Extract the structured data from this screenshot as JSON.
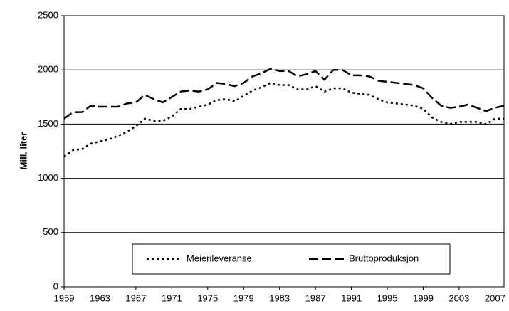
{
  "chart_data": {
    "type": "line",
    "y_label": "Mill. liter",
    "x": [
      1959,
      1960,
      1961,
      1962,
      1963,
      1964,
      1965,
      1966,
      1967,
      1968,
      1969,
      1970,
      1971,
      1972,
      1973,
      1974,
      1975,
      1976,
      1977,
      1978,
      1979,
      1980,
      1981,
      1982,
      1983,
      1984,
      1985,
      1986,
      1987,
      1988,
      1989,
      1990,
      1991,
      1992,
      1993,
      1994,
      1995,
      1996,
      1997,
      1998,
      1999,
      2000,
      2001,
      2002,
      2003,
      2004,
      2005,
      2006,
      2007,
      2008
    ],
    "series": [
      {
        "name": "Meierileveranse",
        "color": "#000000",
        "dash": "dotted",
        "values": [
          1200,
          1260,
          1270,
          1320,
          1340,
          1360,
          1390,
          1430,
          1480,
          1550,
          1530,
          1530,
          1570,
          1640,
          1640,
          1660,
          1680,
          1720,
          1730,
          1710,
          1760,
          1810,
          1840,
          1880,
          1860,
          1860,
          1820,
          1820,
          1850,
          1800,
          1830,
          1830,
          1790,
          1780,
          1770,
          1730,
          1700,
          1690,
          1680,
          1670,
          1640,
          1560,
          1520,
          1500,
          1520,
          1520,
          1520,
          1500,
          1550,
          1550
        ]
      },
      {
        "name": "Bruttoproduksjon",
        "color": "#000000",
        "dash": "dashed",
        "values": [
          1550,
          1610,
          1610,
          1670,
          1660,
          1660,
          1660,
          1690,
          1700,
          1770,
          1730,
          1700,
          1750,
          1800,
          1810,
          1800,
          1820,
          1880,
          1870,
          1850,
          1880,
          1940,
          1970,
          2010,
          1990,
          1990,
          1940,
          1960,
          1990,
          1910,
          2000,
          2000,
          1950,
          1950,
          1940,
          1900,
          1890,
          1880,
          1870,
          1860,
          1830,
          1740,
          1670,
          1650,
          1660,
          1680,
          1650,
          1620,
          1650,
          1670
        ]
      }
    ],
    "xlim": [
      1959,
      2008
    ],
    "xticks": [
      1959,
      1963,
      1967,
      1971,
      1975,
      1979,
      1983,
      1987,
      1991,
      1995,
      1999,
      2003,
      2007
    ],
    "ylim": [
      0,
      2500
    ],
    "yticks": [
      0,
      500,
      1000,
      1500,
      2000,
      2500
    ],
    "grid": true,
    "legend": "lower center"
  }
}
